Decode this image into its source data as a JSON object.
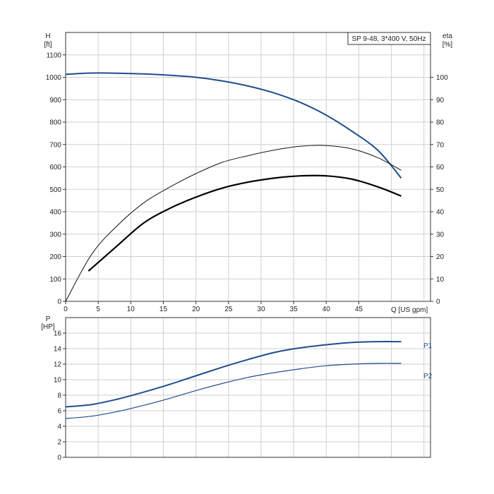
{
  "chart_data": [
    {
      "type": "line",
      "title": "SP 9-48, 3*400 V, 50Hz",
      "x_label": "Q [US gpm]",
      "x_range": [
        0,
        56
      ],
      "x_ticks": [
        0,
        5,
        10,
        15,
        20,
        25,
        30,
        35,
        40,
        45
      ],
      "left_axis": {
        "name": "H",
        "unit": "[ft]",
        "range": [
          0,
          1200
        ],
        "ticks": [
          0,
          100,
          200,
          300,
          400,
          500,
          600,
          700,
          800,
          900,
          1000,
          1100
        ]
      },
      "right_axis": {
        "name": "eta",
        "unit": "[%]",
        "range": [
          0,
          120
        ],
        "ticks": [
          0,
          10,
          20,
          30,
          40,
          50,
          60,
          70,
          80,
          90,
          100
        ]
      },
      "grid": true,
      "series": [
        {
          "key": "head",
          "axis": "left",
          "color": "#1f4e8c",
          "points": [
            [
              0,
              1013
            ],
            [
              4,
              1019
            ],
            [
              8,
              1018
            ],
            [
              12,
              1015
            ],
            [
              16,
              1009
            ],
            [
              20,
              1000
            ],
            [
              24,
              984
            ],
            [
              28,
              961
            ],
            [
              32,
              930
            ],
            [
              36,
              888
            ],
            [
              40,
              831
            ],
            [
              44,
              758
            ],
            [
              48,
              672
            ],
            [
              51.5,
              550
            ]
          ]
        },
        {
          "key": "eta_thin",
          "axis": "right",
          "color": "#111111",
          "points": [
            [
              0,
              0
            ],
            [
              4,
              21
            ],
            [
              8,
              34
            ],
            [
              12,
              44
            ],
            [
              16,
              51
            ],
            [
              20,
              57
            ],
            [
              24,
              62
            ],
            [
              28,
              65
            ],
            [
              32,
              67.5
            ],
            [
              36,
              69.2
            ],
            [
              40,
              69.5
            ],
            [
              44,
              68
            ],
            [
              48,
              64
            ],
            [
              51.5,
              58.5
            ]
          ]
        },
        {
          "key": "eta_thick",
          "axis": "right",
          "color": "#000000",
          "points": [
            [
              3.5,
              13.5
            ],
            [
              8,
              25
            ],
            [
              12,
              35
            ],
            [
              16,
              41.5
            ],
            [
              20,
              46.5
            ],
            [
              24,
              50.5
            ],
            [
              28,
              53.2
            ],
            [
              32,
              55
            ],
            [
              36,
              56
            ],
            [
              40,
              56
            ],
            [
              44,
              54.5
            ],
            [
              48,
              51
            ],
            [
              51.5,
              47
            ]
          ]
        }
      ]
    },
    {
      "type": "line",
      "x_range": [
        0,
        56
      ],
      "left_axis": {
        "name": "P",
        "unit": "[HP]",
        "range": [
          0,
          18
        ],
        "ticks": [
          0,
          2,
          4,
          6,
          8,
          10,
          12,
          14,
          16
        ]
      },
      "grid": true,
      "series": [
        {
          "name": "P1",
          "axis": "left",
          "color": "#1f4e8c",
          "points": [
            [
              0,
              6.5
            ],
            [
              4,
              6.8
            ],
            [
              8,
              7.5
            ],
            [
              12,
              8.4
            ],
            [
              16,
              9.4
            ],
            [
              20,
              10.5
            ],
            [
              24,
              11.6
            ],
            [
              28,
              12.6
            ],
            [
              32,
              13.5
            ],
            [
              36,
              14.1
            ],
            [
              40,
              14.5
            ],
            [
              44,
              14.8
            ],
            [
              48,
              14.9
            ],
            [
              51.5,
              14.9
            ]
          ]
        },
        {
          "name": "P2",
          "axis": "left",
          "color": "#1f4e8c",
          "points": [
            [
              0,
              5.0
            ],
            [
              4,
              5.3
            ],
            [
              8,
              5.9
            ],
            [
              12,
              6.7
            ],
            [
              16,
              7.6
            ],
            [
              20,
              8.6
            ],
            [
              24,
              9.5
            ],
            [
              28,
              10.3
            ],
            [
              32,
              10.9
            ],
            [
              36,
              11.4
            ],
            [
              40,
              11.8
            ],
            [
              44,
              12.0
            ],
            [
              48,
              12.1
            ],
            [
              51.5,
              12.1
            ]
          ]
        }
      ]
    }
  ]
}
